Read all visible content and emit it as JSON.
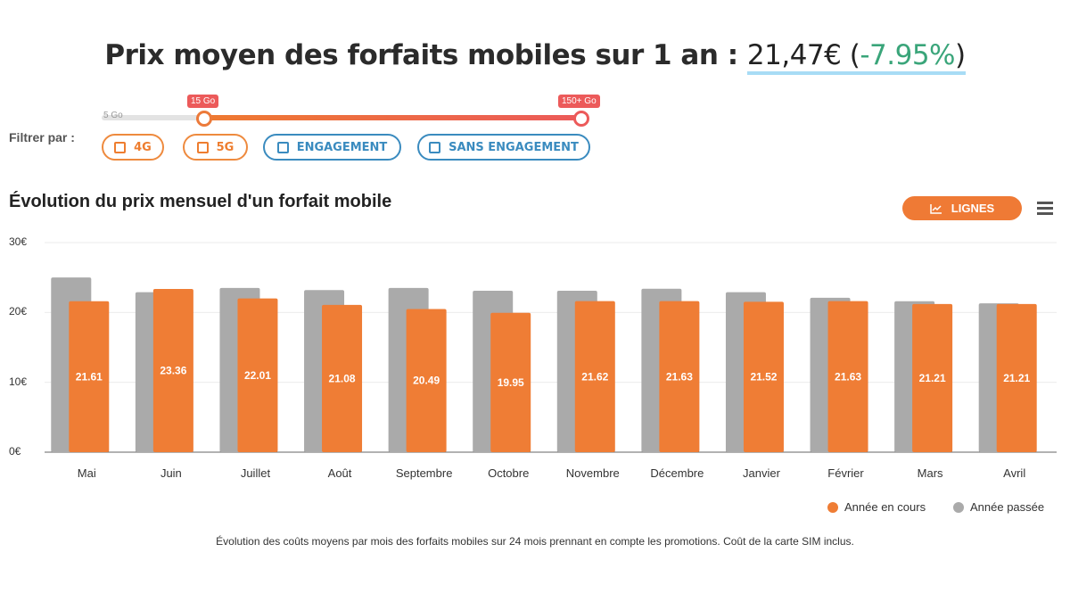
{
  "header": {
    "prefix": "Prix moyen des forfaits mobiles sur 1 an : ",
    "price": "21,47€",
    "open": " (",
    "pct": "-7.95%",
    "close": ")"
  },
  "slider": {
    "min_label": "5 Go",
    "low_label": "15 Go",
    "high_label": "150+ Go"
  },
  "filters": {
    "label": "Filtrer par :",
    "options": [
      "4G",
      "5G",
      "ENGAGEMENT",
      "SANS ENGAGEMENT"
    ]
  },
  "chart_toolbar": {
    "lines_button": "LIGNES",
    "menu_icon": "hamburger-icon",
    "lines_icon": "line-chart-icon"
  },
  "chart_data": {
    "type": "bar",
    "title": "Évolution du prix mensuel d'un forfait mobile",
    "categories": [
      "Mai",
      "Juin",
      "Juillet",
      "Août",
      "Septembre",
      "Octobre",
      "Novembre",
      "Décembre",
      "Janvier",
      "Février",
      "Mars",
      "Avril"
    ],
    "y_ticks": [
      "0€",
      "10€",
      "20€",
      "30€"
    ],
    "ylim": [
      0,
      30
    ],
    "grid": true,
    "legend_position": "bottom-right",
    "series": [
      {
        "name": "Année passée",
        "color": "#aaaaaa",
        "values": [
          25.0,
          22.9,
          23.5,
          23.2,
          23.5,
          23.1,
          23.1,
          23.4,
          22.9,
          22.1,
          21.6,
          21.3
        ]
      },
      {
        "name": "Année en cours",
        "color": "#ef7d35",
        "values": [
          21.61,
          23.36,
          22.01,
          21.08,
          20.49,
          19.95,
          21.62,
          21.63,
          21.52,
          21.63,
          21.21,
          21.21
        ],
        "labels": [
          "21.61",
          "23.36",
          "22.01",
          "21.08",
          "20.49",
          "19.95",
          "21.62",
          "21.63",
          "21.52",
          "21.63",
          "21.21",
          "21.21"
        ]
      }
    ]
  },
  "footnote": "Évolution des coûts moyens par mois des forfaits mobiles sur 24 mois prennant en compte les promotions. Coût de la carte SIM inclus."
}
